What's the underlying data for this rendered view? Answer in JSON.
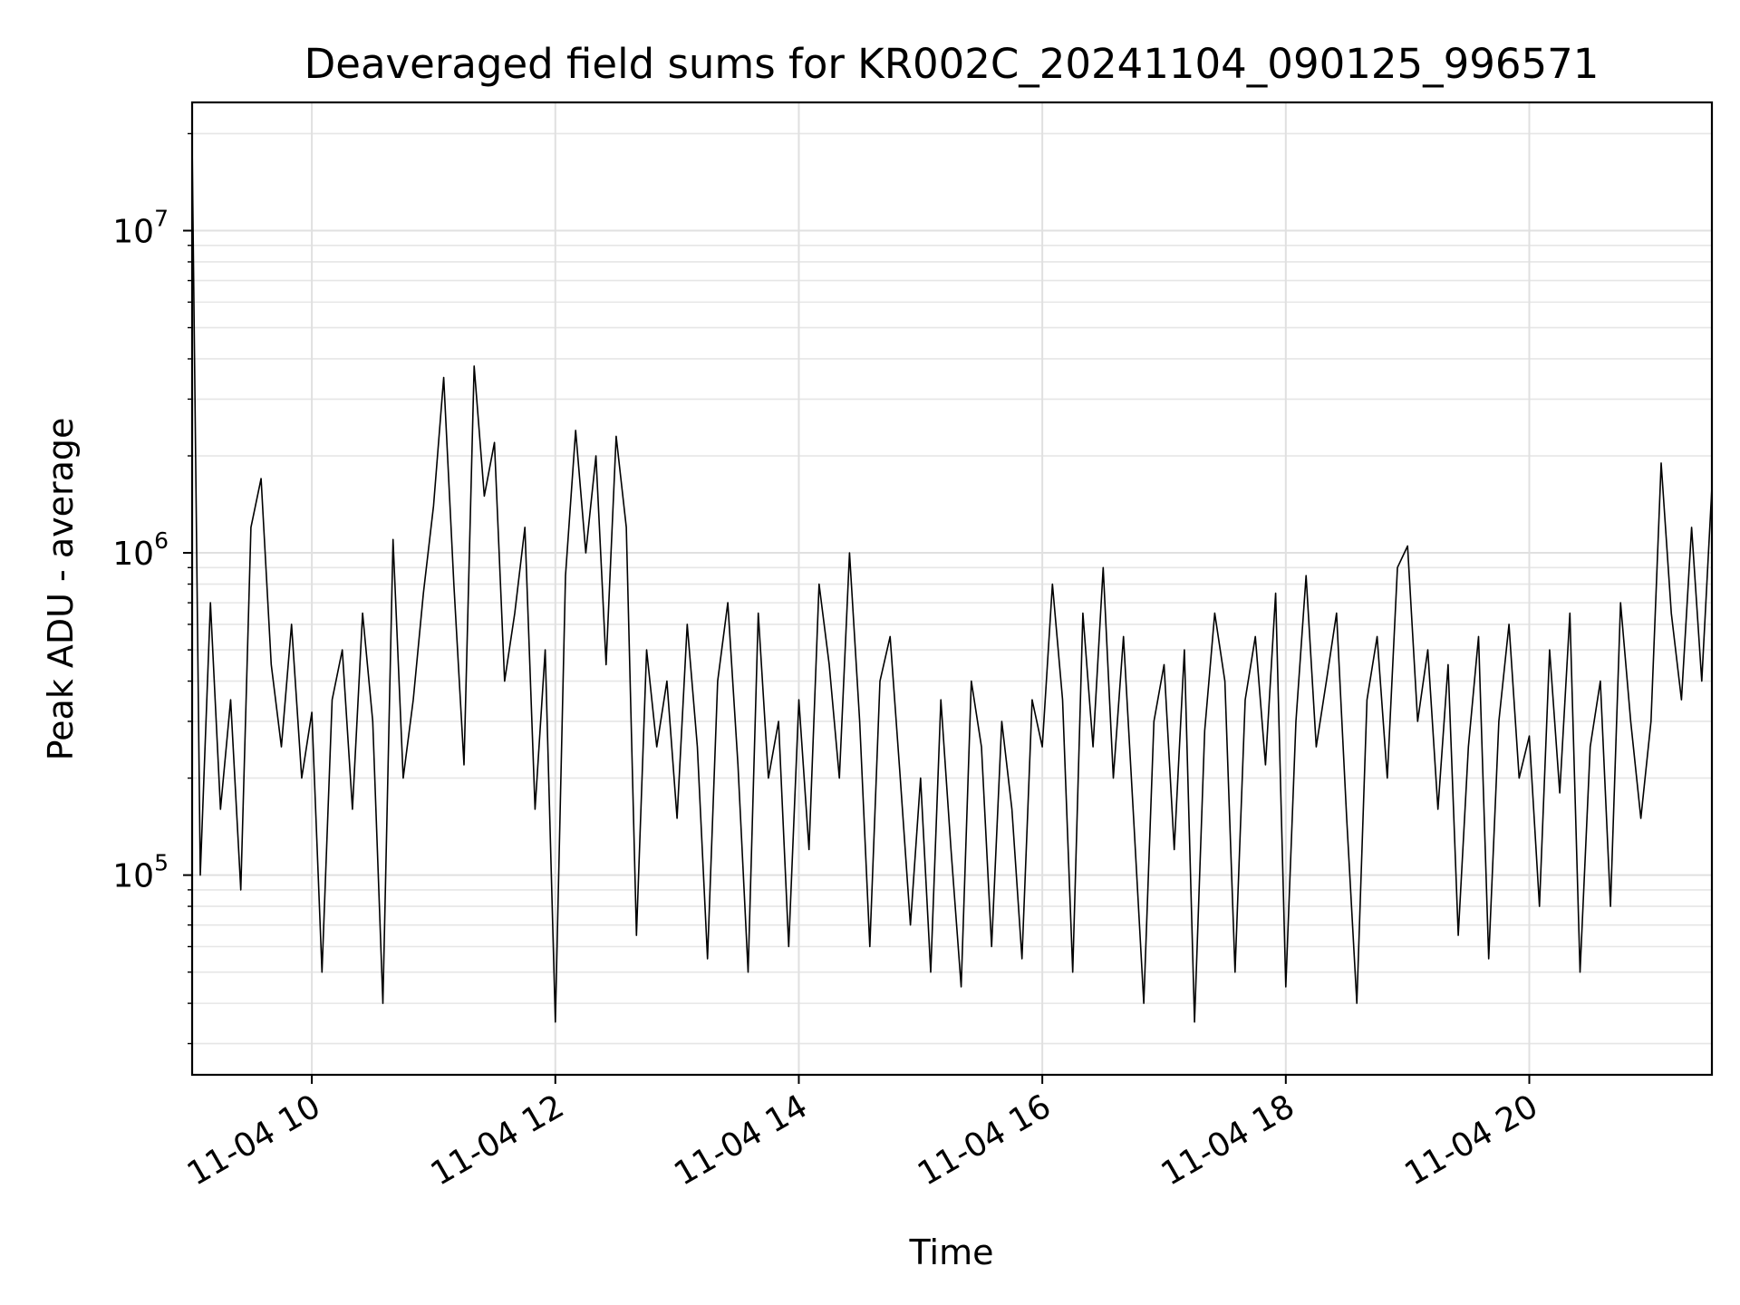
{
  "chart_data": {
    "type": "line",
    "title": "Deaveraged field sums for KR002C_20241104_090125_996571",
    "xlabel": "Time",
    "ylabel": "Peak ADU - average",
    "yscale": "log",
    "xlim": [
      "2024-11-04 09:01",
      "2024-11-04 21:30"
    ],
    "ylim": [
      24000,
      25000000
    ],
    "grid": true,
    "x_ticks": [
      {
        "value": "2024-11-04 10:00",
        "label": "11-04 10"
      },
      {
        "value": "2024-11-04 12:00",
        "label": "11-04 12"
      },
      {
        "value": "2024-11-04 14:00",
        "label": "11-04 14"
      },
      {
        "value": "2024-11-04 16:00",
        "label": "11-04 16"
      },
      {
        "value": "2024-11-04 18:00",
        "label": "11-04 18"
      },
      {
        "value": "2024-11-04 20:00",
        "label": "11-04 20"
      }
    ],
    "y_ticks": [
      {
        "value": 100000,
        "base": "10",
        "exp": "5"
      },
      {
        "value": 1000000,
        "base": "10",
        "exp": "6"
      },
      {
        "value": 10000000,
        "base": "10",
        "exp": "7"
      }
    ],
    "series": [
      {
        "color": "#000000",
        "x": [
          "2024-11-04 09:01",
          "2024-11-04 09:05",
          "2024-11-04 09:10",
          "2024-11-04 09:15",
          "2024-11-04 09:20",
          "2024-11-04 09:25",
          "2024-11-04 09:30",
          "2024-11-04 09:35",
          "2024-11-04 09:40",
          "2024-11-04 09:45",
          "2024-11-04 09:50",
          "2024-11-04 09:55",
          "2024-11-04 10:00",
          "2024-11-04 10:05",
          "2024-11-04 10:10",
          "2024-11-04 10:15",
          "2024-11-04 10:20",
          "2024-11-04 10:25",
          "2024-11-04 10:30",
          "2024-11-04 10:35",
          "2024-11-04 10:40",
          "2024-11-04 10:45",
          "2024-11-04 10:50",
          "2024-11-04 10:55",
          "2024-11-04 11:00",
          "2024-11-04 11:05",
          "2024-11-04 11:10",
          "2024-11-04 11:15",
          "2024-11-04 11:20",
          "2024-11-04 11:25",
          "2024-11-04 11:30",
          "2024-11-04 11:35",
          "2024-11-04 11:40",
          "2024-11-04 11:45",
          "2024-11-04 11:50",
          "2024-11-04 11:55",
          "2024-11-04 12:00",
          "2024-11-04 12:05",
          "2024-11-04 12:10",
          "2024-11-04 12:15",
          "2024-11-04 12:20",
          "2024-11-04 12:25",
          "2024-11-04 12:30",
          "2024-11-04 12:35",
          "2024-11-04 12:40",
          "2024-11-04 12:45",
          "2024-11-04 12:50",
          "2024-11-04 12:55",
          "2024-11-04 13:00",
          "2024-11-04 13:05",
          "2024-11-04 13:10",
          "2024-11-04 13:15",
          "2024-11-04 13:20",
          "2024-11-04 13:25",
          "2024-11-04 13:30",
          "2024-11-04 13:35",
          "2024-11-04 13:40",
          "2024-11-04 13:45",
          "2024-11-04 13:50",
          "2024-11-04 13:55",
          "2024-11-04 14:00",
          "2024-11-04 14:05",
          "2024-11-04 14:10",
          "2024-11-04 14:15",
          "2024-11-04 14:20",
          "2024-11-04 14:25",
          "2024-11-04 14:30",
          "2024-11-04 14:35",
          "2024-11-04 14:40",
          "2024-11-04 14:45",
          "2024-11-04 14:50",
          "2024-11-04 14:55",
          "2024-11-04 15:00",
          "2024-11-04 15:05",
          "2024-11-04 15:10",
          "2024-11-04 15:15",
          "2024-11-04 15:20",
          "2024-11-04 15:25",
          "2024-11-04 15:30",
          "2024-11-04 15:35",
          "2024-11-04 15:40",
          "2024-11-04 15:45",
          "2024-11-04 15:50",
          "2024-11-04 15:55",
          "2024-11-04 16:00",
          "2024-11-04 16:05",
          "2024-11-04 16:10",
          "2024-11-04 16:15",
          "2024-11-04 16:20",
          "2024-11-04 16:25",
          "2024-11-04 16:30",
          "2024-11-04 16:35",
          "2024-11-04 16:40",
          "2024-11-04 16:45",
          "2024-11-04 16:50",
          "2024-11-04 16:55",
          "2024-11-04 17:00",
          "2024-11-04 17:05",
          "2024-11-04 17:10",
          "2024-11-04 17:15",
          "2024-11-04 17:20",
          "2024-11-04 17:25",
          "2024-11-04 17:30",
          "2024-11-04 17:35",
          "2024-11-04 17:40",
          "2024-11-04 17:45",
          "2024-11-04 17:50",
          "2024-11-04 17:55",
          "2024-11-04 18:00",
          "2024-11-04 18:05",
          "2024-11-04 18:10",
          "2024-11-04 18:15",
          "2024-11-04 18:20",
          "2024-11-04 18:25",
          "2024-11-04 18:30",
          "2024-11-04 18:35",
          "2024-11-04 18:40",
          "2024-11-04 18:45",
          "2024-11-04 18:50",
          "2024-11-04 18:55",
          "2024-11-04 19:00",
          "2024-11-04 19:05",
          "2024-11-04 19:10",
          "2024-11-04 19:15",
          "2024-11-04 19:20",
          "2024-11-04 19:25",
          "2024-11-04 19:30",
          "2024-11-04 19:35",
          "2024-11-04 19:40",
          "2024-11-04 19:45",
          "2024-11-04 19:50",
          "2024-11-04 19:55",
          "2024-11-04 20:00",
          "2024-11-04 20:05",
          "2024-11-04 20:10",
          "2024-11-04 20:15",
          "2024-11-04 20:20",
          "2024-11-04 20:25",
          "2024-11-04 20:30",
          "2024-11-04 20:35",
          "2024-11-04 20:40",
          "2024-11-04 20:45",
          "2024-11-04 20:50",
          "2024-11-04 20:55",
          "2024-11-04 21:00",
          "2024-11-04 21:05",
          "2024-11-04 21:10",
          "2024-11-04 21:15",
          "2024-11-04 21:20",
          "2024-11-04 21:25",
          "2024-11-04 21:30"
        ],
        "y": [
          19000000.0,
          100000.0,
          700000.0,
          160000.0,
          350000.0,
          90000.0,
          1200000.0,
          1700000.0,
          450000.0,
          250000.0,
          600000.0,
          200000.0,
          320000.0,
          50000.0,
          350000.0,
          500000.0,
          160000.0,
          650000.0,
          300000.0,
          40000.0,
          1100000.0,
          200000.0,
          350000.0,
          750000.0,
          1400000.0,
          3500000.0,
          800000.0,
          220000.0,
          3800000.0,
          1500000.0,
          2200000.0,
          400000.0,
          650000.0,
          1200000.0,
          160000.0,
          500000.0,
          35000.0,
          850000.0,
          2400000.0,
          1000000.0,
          2000000.0,
          450000.0,
          2300000.0,
          1200000.0,
          65000.0,
          500000.0,
          250000.0,
          400000.0,
          150000.0,
          600000.0,
          250000.0,
          55000.0,
          400000.0,
          700000.0,
          220000.0,
          50000.0,
          650000.0,
          200000.0,
          300000.0,
          60000.0,
          350000.0,
          120000.0,
          800000.0,
          450000.0,
          200000.0,
          1000000.0,
          300000.0,
          60000.0,
          400000.0,
          550000.0,
          200000.0,
          70000.0,
          200000.0,
          50000.0,
          350000.0,
          120000.0,
          45000.0,
          400000.0,
          250000.0,
          60000.0,
          300000.0,
          160000.0,
          55000.0,
          350000.0,
          250000.0,
          800000.0,
          350000.0,
          50000.0,
          650000.0,
          250000.0,
          900000.0,
          200000.0,
          550000.0,
          150000.0,
          40000.0,
          300000.0,
          450000.0,
          120000.0,
          500000.0,
          35000.0,
          280000.0,
          650000.0,
          400000.0,
          50000.0,
          350000.0,
          550000.0,
          220000.0,
          750000.0,
          45000.0,
          300000.0,
          850000.0,
          250000.0,
          400000.0,
          650000.0,
          150000.0,
          40000.0,
          350000.0,
          550000.0,
          200000.0,
          900000.0,
          1050000.0,
          300000.0,
          500000.0,
          160000.0,
          450000.0,
          65000.0,
          250000.0,
          550000.0,
          55000.0,
          300000.0,
          600000.0,
          200000.0,
          270000.0,
          80000.0,
          500000.0,
          180000.0,
          650000.0,
          50000.0,
          250000.0,
          400000.0,
          80000.0,
          700000.0,
          300000.0,
          150000.0,
          300000.0,
          1900000.0,
          650000.0,
          350000.0,
          1200000.0,
          400000.0,
          1600000.0
        ]
      }
    ]
  }
}
